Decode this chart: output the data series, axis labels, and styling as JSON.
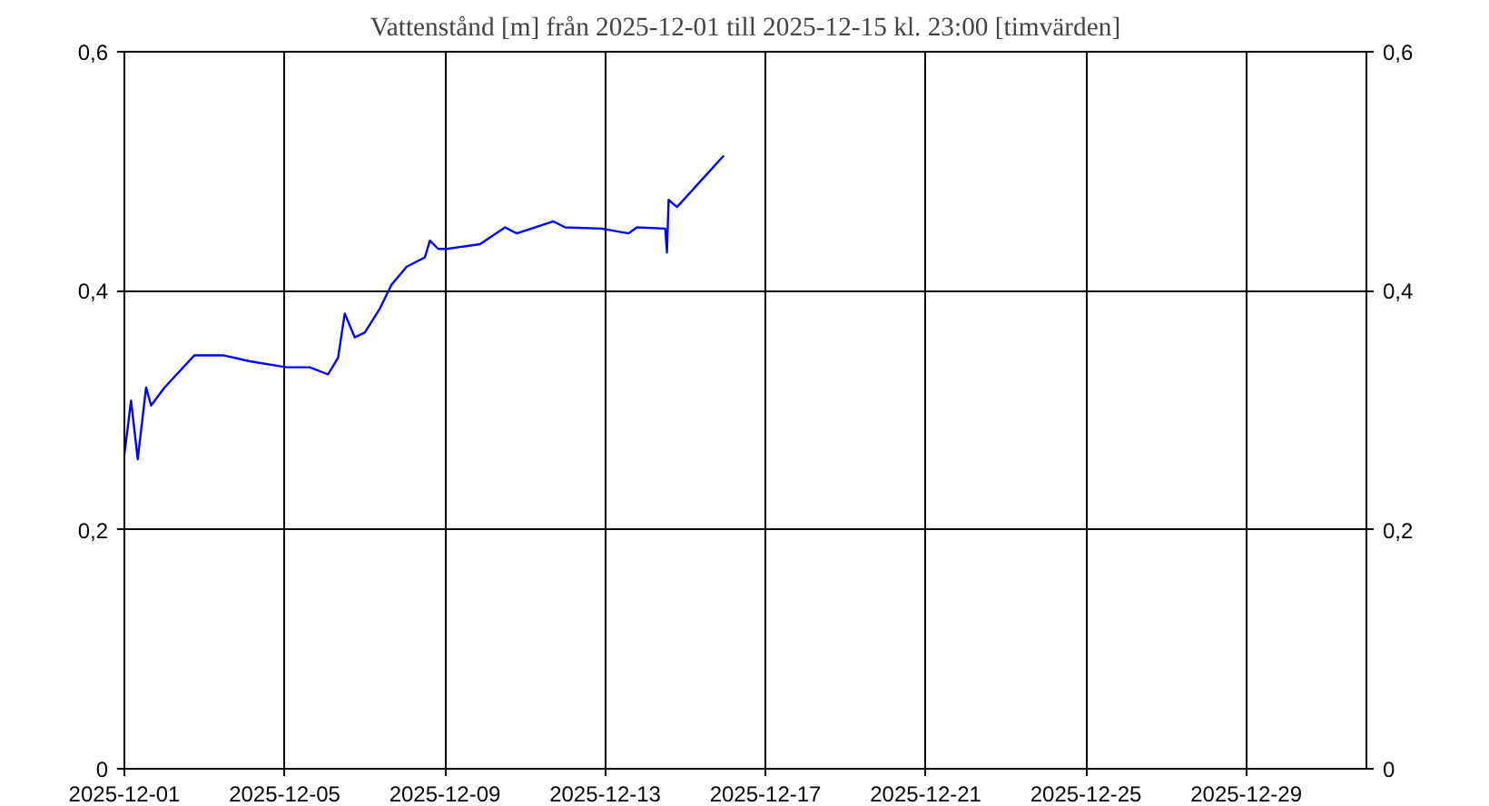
{
  "chart_data": {
    "type": "line",
    "title": "Vattenstånd [m] från 2025-12-01 till 2025-12-15 kl. 23:00 [timvärden]",
    "x": [
      "2025-12-01T00:00",
      "2025-12-01T04:00",
      "2025-12-01T08:00",
      "2025-12-01T13:00",
      "2025-12-01T16:00",
      "2025-12-02T00:00",
      "2025-12-02T18:00",
      "2025-12-03T11:00",
      "2025-12-04T03:00",
      "2025-12-05T01:00",
      "2025-12-05T15:00",
      "2025-12-06T02:00",
      "2025-12-06T08:00",
      "2025-12-06T12:00",
      "2025-12-06T18:00",
      "2025-12-07T00:00",
      "2025-12-07T09:00",
      "2025-12-07T16:00",
      "2025-12-08T01:00",
      "2025-12-08T12:00",
      "2025-12-08T15:00",
      "2025-12-08T20:00",
      "2025-12-09T01:00",
      "2025-12-09T21:00",
      "2025-12-10T12:00",
      "2025-12-10T19:00",
      "2025-12-11T17:00",
      "2025-12-12T00:00",
      "2025-12-12T22:00",
      "2025-12-13T14:00",
      "2025-12-13T19:00",
      "2025-12-14T12:00",
      "2025-12-14T13:00",
      "2025-12-14T14:00",
      "2025-12-14T19:00",
      "2025-12-15T23:00"
    ],
    "series": [
      {
        "color": "#0000ff",
        "values": [
          0.263,
          0.308,
          0.259,
          0.319,
          0.304,
          0.319,
          0.346,
          0.346,
          0.341,
          0.336,
          0.336,
          0.33,
          0.344,
          0.381,
          0.361,
          0.365,
          0.385,
          0.405,
          0.42,
          0.428,
          0.442,
          0.435,
          0.435,
          0.439,
          0.453,
          0.448,
          0.458,
          0.453,
          0.452,
          0.448,
          0.453,
          0.452,
          0.432,
          0.476,
          0.47,
          0.513
        ]
      }
    ],
    "xlim": [
      "2025-12-01",
      "2026-01-01"
    ],
    "xticks": [
      "2025-12-01",
      "2025-12-05",
      "2025-12-09",
      "2025-12-13",
      "2025-12-17",
      "2025-12-21",
      "2025-12-25",
      "2025-12-29"
    ],
    "ylim": [
      0,
      0.6
    ],
    "yticks": [
      0,
      {
        "value": 0.2,
        "label": "0,2"
      },
      {
        "value": 0.4,
        "label": "0,4"
      },
      {
        "value": 0.6,
        "label": "0,6"
      }
    ],
    "y2lim": [
      0,
      0.6
    ],
    "y2ticks": [
      0,
      {
        "value": 0.2,
        "label": "0,2"
      },
      {
        "value": 0.4,
        "label": "0,4"
      },
      {
        "value": 0.6,
        "label": "0,6"
      }
    ],
    "grid": true
  }
}
